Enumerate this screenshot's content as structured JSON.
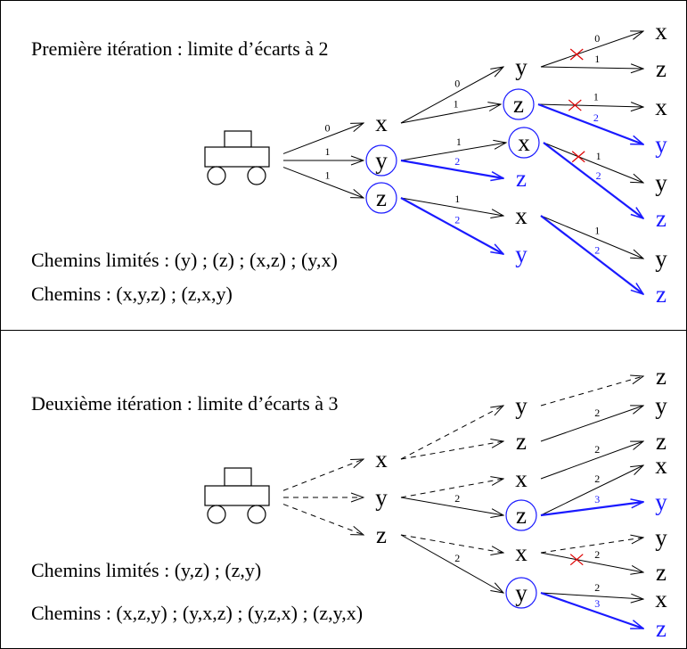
{
  "panels": [
    {
      "title": "Première itération : limite d’écarts à 2",
      "limited": "Chemins limités : (y) ; (z) ; (x,z) ; (y,x)",
      "paths": "Chemins : (x,y,z) ; (z,x,y)",
      "nodes": [
        "x",
        "y",
        "z",
        "y",
        "z",
        "x",
        "z",
        "x",
        "y",
        "x",
        "z",
        "x",
        "y",
        "y",
        "z",
        "y",
        "z"
      ],
      "edge_labels": [
        0,
        1,
        1,
        0,
        1,
        1,
        2,
        1,
        2,
        0,
        1,
        1,
        2,
        1,
        2,
        1,
        2
      ]
    },
    {
      "title": "Deuxième itération : limite d’écarts à 3",
      "limited": "Chemins limités : (y,z) ; (z,y)",
      "paths": "Chemins : (x,z,y) ; (y,x,z) ; (y,z,x) ; (z,y,x)",
      "nodes": [
        "x",
        "y",
        "z",
        "y",
        "z",
        "x",
        "z",
        "x",
        "y",
        "z",
        "y",
        "z",
        "x",
        "y",
        "y",
        "z",
        "x",
        "z"
      ],
      "edge_labels": [
        2,
        2,
        2,
        2,
        2,
        3,
        2,
        2,
        3
      ]
    }
  ]
}
